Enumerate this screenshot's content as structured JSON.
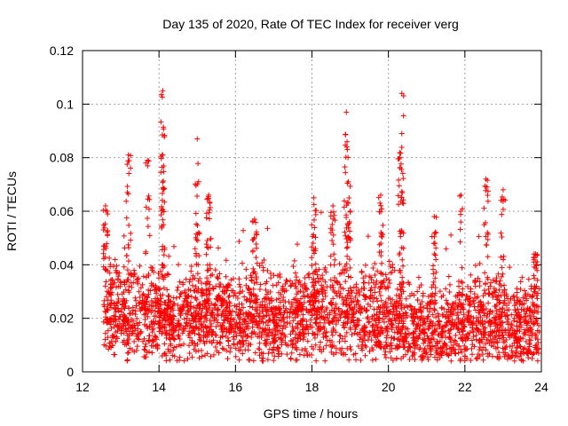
{
  "chart_data": {
    "type": "scatter",
    "title": "Day 135 of 2020, Rate Of TEC Index for receiver verg",
    "xlabel": "GPS time / hours",
    "ylabel": "ROTI / TECUs",
    "xlim": [
      12,
      24
    ],
    "ylim": [
      0,
      0.12
    ],
    "x_ticks": [
      "12",
      "14",
      "16",
      "18",
      "20",
      "22",
      "24"
    ],
    "y_ticks": [
      "0",
      "0.02",
      "0.04",
      "0.06",
      "0.08",
      "0.1",
      "0.12"
    ],
    "grid": true,
    "marker": "+",
    "series": [
      {
        "name": "ROTI",
        "color": "#ff0000",
        "data_range_x": [
          12.55,
          23.95
        ],
        "baseline": [
          [
            12.55,
            0.025
          ],
          [
            13.0,
            0.022
          ],
          [
            13.5,
            0.021
          ],
          [
            14.0,
            0.02
          ],
          [
            14.5,
            0.02
          ],
          [
            15.0,
            0.022
          ],
          [
            15.5,
            0.021
          ],
          [
            16.0,
            0.019
          ],
          [
            16.5,
            0.02
          ],
          [
            17.0,
            0.019
          ],
          [
            17.5,
            0.019
          ],
          [
            18.0,
            0.021
          ],
          [
            18.5,
            0.022
          ],
          [
            19.0,
            0.021
          ],
          [
            19.5,
            0.02
          ],
          [
            20.0,
            0.019
          ],
          [
            20.5,
            0.017
          ],
          [
            21.0,
            0.016
          ],
          [
            21.5,
            0.015
          ],
          [
            22.0,
            0.017
          ],
          [
            22.5,
            0.02
          ],
          [
            23.0,
            0.018
          ],
          [
            23.5,
            0.016
          ],
          [
            23.95,
            0.017
          ]
        ],
        "peaks": [
          {
            "x": 12.6,
            "y": 0.062
          },
          {
            "x": 13.2,
            "y": 0.081
          },
          {
            "x": 13.7,
            "y": 0.079
          },
          {
            "x": 14.1,
            "y": 0.105
          },
          {
            "x": 14.1,
            "y": 0.081
          },
          {
            "x": 15.0,
            "y": 0.087
          },
          {
            "x": 15.3,
            "y": 0.066
          },
          {
            "x": 16.5,
            "y": 0.057
          },
          {
            "x": 18.05,
            "y": 0.065
          },
          {
            "x": 18.55,
            "y": 0.062
          },
          {
            "x": 18.9,
            "y": 0.097
          },
          {
            "x": 18.95,
            "y": 0.071
          },
          {
            "x": 19.8,
            "y": 0.066
          },
          {
            "x": 20.35,
            "y": 0.104
          },
          {
            "x": 20.35,
            "y": 0.089
          },
          {
            "x": 20.3,
            "y": 0.08
          },
          {
            "x": 21.2,
            "y": 0.058
          },
          {
            "x": 21.9,
            "y": 0.066
          },
          {
            "x": 22.55,
            "y": 0.072
          },
          {
            "x": 23.0,
            "y": 0.068
          },
          {
            "x": 23.85,
            "y": 0.044
          }
        ]
      }
    ]
  }
}
